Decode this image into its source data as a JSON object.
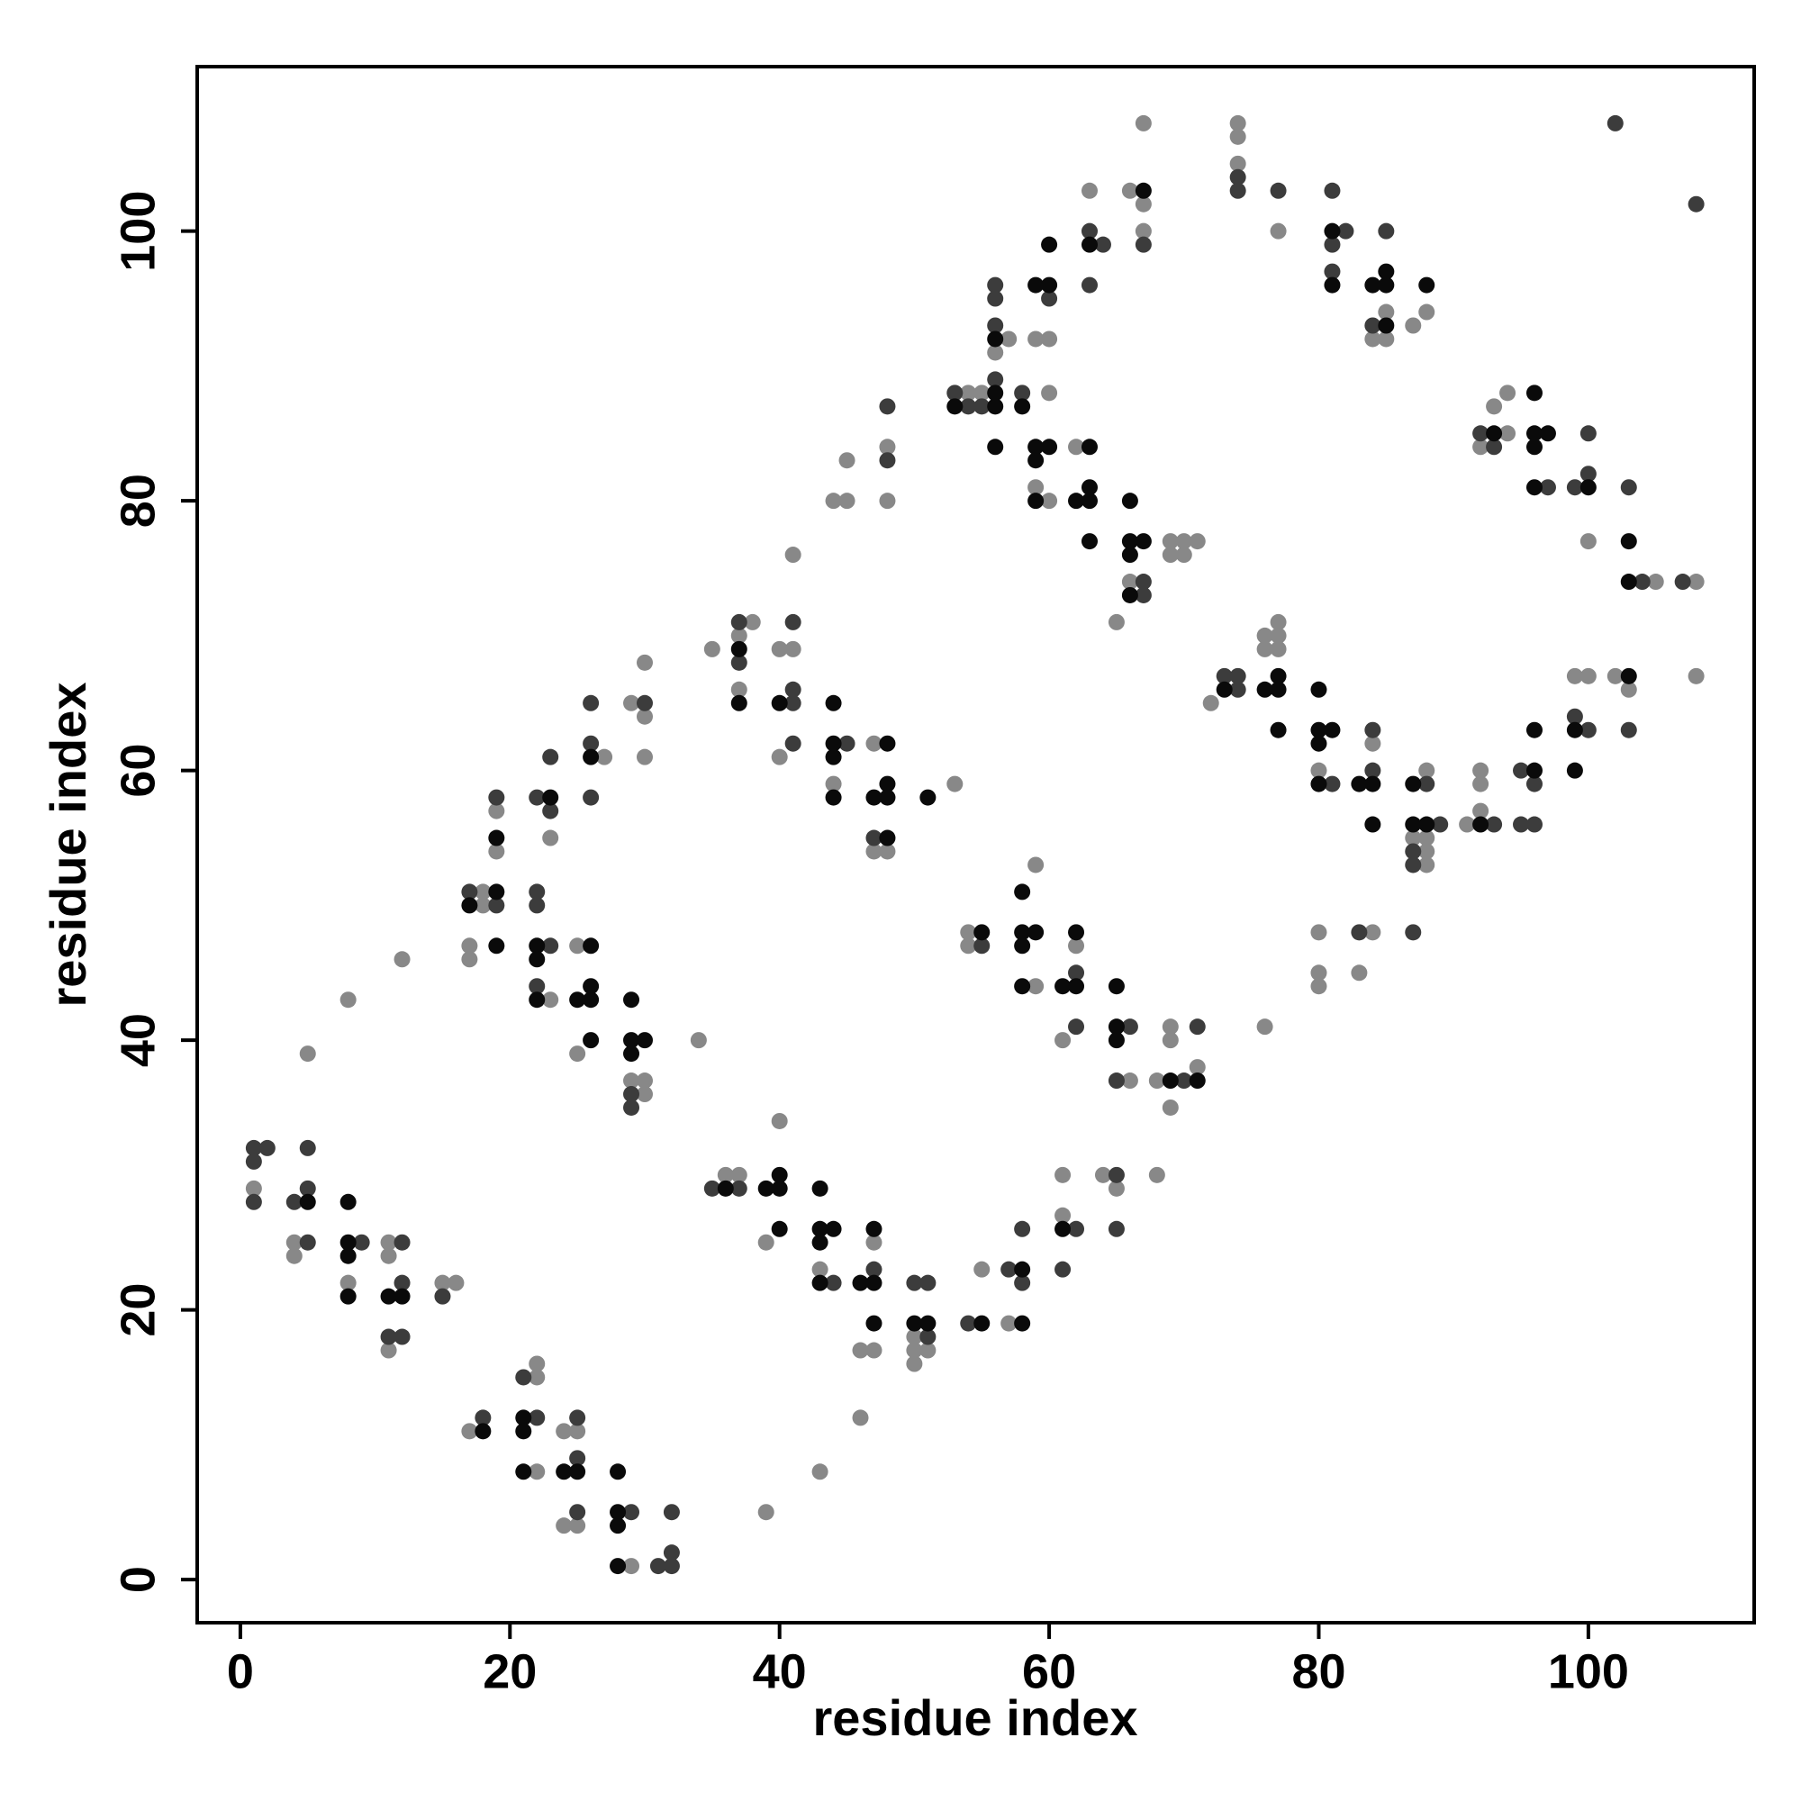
{
  "chart_data": {
    "type": "scatter",
    "xlabel": "residue index",
    "ylabel": "residue index",
    "xlim": [
      -3.2,
      112.3
    ],
    "ylim": [
      -3.2,
      112.2
    ],
    "xticks": [
      0,
      20,
      40,
      60,
      80,
      100
    ],
    "yticks": [
      0,
      20,
      40,
      60,
      80,
      100
    ],
    "series": [
      {
        "color": "#888888",
        "x": [
          1,
          4,
          4,
          5,
          8,
          8,
          11,
          11,
          11,
          12,
          15,
          16,
          17,
          17,
          17,
          18,
          18,
          19,
          19,
          22,
          22,
          22,
          23,
          23,
          24,
          24,
          25,
          25,
          25,
          25,
          27,
          29,
          29,
          29,
          30,
          30,
          30,
          30,
          30,
          34,
          35,
          36,
          37,
          37,
          37,
          38,
          39,
          39,
          40,
          40,
          40,
          41,
          41,
          43,
          43,
          44,
          44,
          45,
          45,
          46,
          46,
          47,
          47,
          47,
          47,
          48,
          48,
          48,
          50,
          50,
          50,
          51,
          53,
          54,
          54,
          54,
          55,
          55,
          56,
          57,
          57,
          59,
          59,
          59,
          59,
          60,
          60,
          60,
          61,
          61,
          61,
          62,
          62,
          63,
          64,
          65,
          65,
          66,
          66,
          66,
          67,
          67,
          67,
          68,
          68,
          69,
          69,
          69,
          69,
          69,
          70,
          70,
          71,
          71,
          72,
          74,
          74,
          74,
          76,
          76,
          76,
          77,
          77,
          77,
          77,
          80,
          80,
          80,
          80,
          83,
          84,
          84,
          84,
          85,
          85,
          87,
          87,
          88,
          88,
          88,
          88,
          88,
          91,
          92,
          92,
          92,
          92,
          93,
          94,
          94,
          99,
          100,
          100,
          102,
          103,
          105,
          108,
          108
        ],
        "values": [
          29,
          25,
          24,
          39,
          43,
          22,
          25,
          24,
          17,
          46,
          22,
          22,
          47,
          46,
          11,
          51,
          50,
          57,
          54,
          16,
          15,
          8,
          55,
          43,
          11,
          4,
          47,
          39,
          11,
          4,
          61,
          65,
          37,
          1,
          68,
          64,
          61,
          37,
          36,
          40,
          69,
          30,
          70,
          66,
          30,
          71,
          25,
          5,
          69,
          61,
          34,
          76,
          69,
          23,
          8,
          80,
          59,
          83,
          80,
          17,
          12,
          62,
          54,
          25,
          17,
          84,
          80,
          54,
          18,
          17,
          16,
          17,
          59,
          88,
          48,
          47,
          88,
          23,
          91,
          92,
          19,
          92,
          81,
          53,
          44,
          92,
          88,
          80,
          40,
          30,
          27,
          84,
          47,
          103,
          30,
          71,
          29,
          103,
          74,
          37,
          108,
          102,
          100,
          37,
          30,
          77,
          76,
          41,
          40,
          35,
          77,
          76,
          77,
          38,
          65,
          108,
          107,
          105,
          70,
          69,
          41,
          100,
          71,
          70,
          69,
          60,
          48,
          45,
          44,
          45,
          92,
          62,
          48,
          94,
          92,
          93,
          55,
          94,
          60,
          55,
          54,
          53,
          56,
          84,
          60,
          59,
          57,
          87,
          88,
          85,
          67,
          77,
          67,
          67,
          66,
          74,
          74,
          67
        ]
      },
      {
        "color": "#3c3c3c",
        "x": [
          1,
          1,
          1,
          2,
          4,
          5,
          5,
          5,
          9,
          11,
          12,
          12,
          12,
          15,
          17,
          18,
          19,
          19,
          21,
          22,
          22,
          22,
          22,
          22,
          23,
          23,
          23,
          25,
          25,
          25,
          26,
          26,
          26,
          29,
          29,
          29,
          30,
          31,
          32,
          32,
          32,
          35,
          37,
          37,
          37,
          41,
          41,
          41,
          41,
          44,
          45,
          47,
          47,
          48,
          48,
          50,
          51,
          51,
          53,
          54,
          54,
          55,
          55,
          56,
          56,
          56,
          56,
          57,
          58,
          58,
          58,
          60,
          61,
          62,
          62,
          62,
          63,
          63,
          64,
          65,
          65,
          65,
          66,
          67,
          67,
          67,
          70,
          71,
          73,
          74,
          74,
          74,
          74,
          77,
          81,
          81,
          81,
          81,
          82,
          83,
          84,
          84,
          84,
          85,
          87,
          87,
          87,
          88,
          89,
          92,
          93,
          93,
          95,
          95,
          96,
          96,
          97,
          99,
          99,
          100,
          100,
          100,
          102,
          103,
          103,
          104,
          107,
          108
        ],
        "values": [
          32,
          31,
          28,
          32,
          28,
          32,
          29,
          25,
          25,
          18,
          25,
          22,
          18,
          21,
          51,
          12,
          58,
          50,
          15,
          58,
          51,
          50,
          44,
          12,
          61,
          57,
          47,
          12,
          9,
          5,
          65,
          62,
          58,
          36,
          35,
          5,
          65,
          1,
          5,
          2,
          1,
          29,
          71,
          68,
          29,
          71,
          66,
          65,
          62,
          22,
          62,
          55,
          23,
          87,
          83,
          22,
          22,
          18,
          88,
          87,
          19,
          87,
          47,
          96,
          95,
          93,
          89,
          23,
          88,
          26,
          22,
          95,
          23,
          45,
          41,
          26,
          100,
          96,
          99,
          37,
          30,
          26,
          41,
          99,
          74,
          73,
          37,
          41,
          67,
          104,
          103,
          67,
          66,
          103,
          103,
          99,
          97,
          59,
          100,
          48,
          93,
          63,
          60,
          100,
          54,
          53,
          48,
          59,
          56,
          85,
          84,
          56,
          60,
          56,
          59,
          56,
          81,
          81,
          64,
          85,
          82,
          63,
          108,
          81,
          63,
          74,
          74,
          102
        ]
      },
      {
        "color": "#0a0a0a",
        "x": [
          5,
          8,
          8,
          8,
          8,
          11,
          12,
          17,
          18,
          19,
          19,
          19,
          21,
          21,
          21,
          22,
          22,
          22,
          23,
          24,
          25,
          25,
          26,
          26,
          26,
          26,
          26,
          28,
          28,
          28,
          28,
          29,
          29,
          29,
          30,
          36,
          37,
          37,
          39,
          40,
          40,
          40,
          40,
          43,
          43,
          43,
          43,
          44,
          44,
          44,
          44,
          44,
          46,
          47,
          47,
          47,
          47,
          48,
          48,
          48,
          48,
          50,
          51,
          51,
          53,
          55,
          55,
          56,
          56,
          56,
          56,
          58,
          58,
          58,
          58,
          58,
          58,
          58,
          59,
          59,
          59,
          59,
          59,
          60,
          60,
          60,
          61,
          61,
          62,
          62,
          62,
          63,
          63,
          63,
          63,
          63,
          65,
          65,
          65,
          66,
          66,
          66,
          66,
          67,
          67,
          69,
          71,
          73,
          76,
          77,
          77,
          77,
          80,
          80,
          80,
          80,
          81,
          81,
          81,
          83,
          84,
          84,
          84,
          85,
          85,
          85,
          87,
          87,
          88,
          88,
          92,
          93,
          96,
          96,
          96,
          96,
          96,
          96,
          97,
          99,
          99,
          100,
          103,
          103,
          103
        ],
        "values": [
          28,
          28,
          25,
          24,
          21,
          21,
          21,
          50,
          11,
          55,
          51,
          47,
          12,
          11,
          8,
          47,
          46,
          43,
          58,
          8,
          43,
          8,
          61,
          47,
          44,
          43,
          40,
          8,
          5,
          4,
          1,
          43,
          40,
          39,
          40,
          29,
          69,
          65,
          29,
          65,
          30,
          29,
          26,
          29,
          26,
          25,
          22,
          65,
          62,
          61,
          58,
          26,
          22,
          58,
          26,
          22,
          19,
          62,
          59,
          58,
          55,
          19,
          58,
          19,
          87,
          48,
          19,
          92,
          88,
          87,
          84,
          87,
          51,
          48,
          47,
          44,
          23,
          19,
          96,
          84,
          83,
          80,
          48,
          99,
          96,
          84,
          44,
          26,
          80,
          48,
          44,
          99,
          84,
          81,
          80,
          77,
          44,
          41,
          40,
          80,
          77,
          76,
          73,
          103,
          77,
          37,
          37,
          66,
          66,
          67,
          66,
          63,
          66,
          63,
          62,
          59,
          100,
          96,
          63,
          59,
          96,
          59,
          56,
          97,
          96,
          93,
          59,
          56,
          96,
          56,
          56,
          85,
          88,
          85,
          84,
          81,
          63,
          60,
          85,
          63,
          60,
          81,
          77,
          74,
          67
        ]
      }
    ]
  }
}
